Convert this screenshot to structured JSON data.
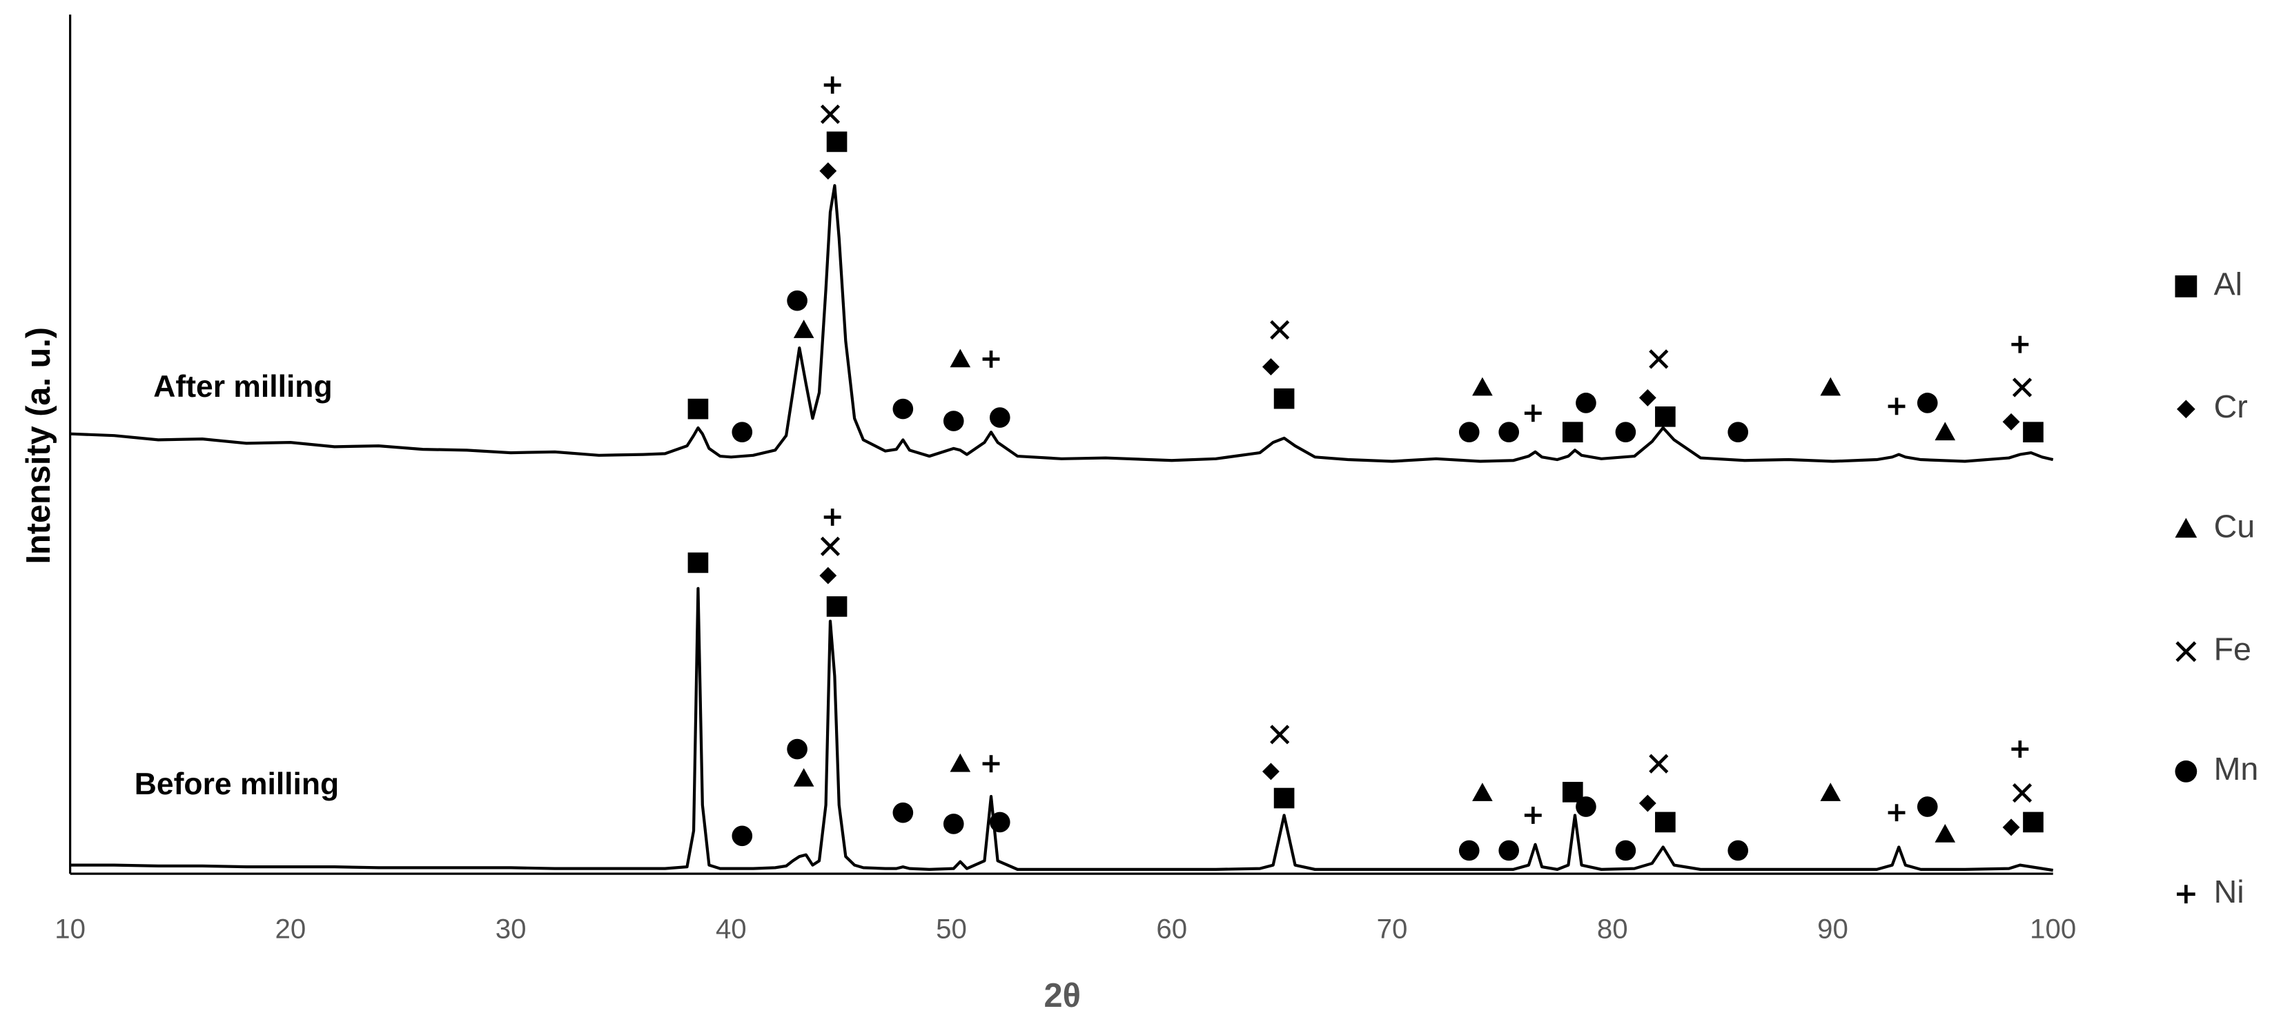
{
  "chart_data": {
    "type": "line",
    "x_label": "2θ",
    "y_label": "Intensity (a. u.)",
    "xlim": [
      10,
      100
    ],
    "xticks": [
      10,
      20,
      30,
      40,
      50,
      60,
      70,
      80,
      90,
      100
    ],
    "ylim": [
      0,
      100
    ],
    "x": [
      10,
      12,
      14,
      16,
      18,
      20,
      22,
      24,
      26,
      28,
      30,
      32,
      34,
      36,
      37,
      38,
      38.3,
      38.5,
      38.7,
      39,
      39.5,
      40,
      41,
      42,
      42.5,
      42.8,
      43.1,
      43.4,
      43.7,
      44,
      44.3,
      44.5,
      44.7,
      44.9,
      45.2,
      45.6,
      46,
      47,
      47.5,
      47.8,
      48.1,
      49,
      50.1,
      50.4,
      50.7,
      51.5,
      51.8,
      52.1,
      53,
      55,
      57,
      60,
      62,
      64,
      64.6,
      65.1,
      65.6,
      66.5,
      68,
      70,
      72,
      74,
      75.5,
      76.2,
      76.5,
      76.8,
      77.5,
      78,
      78.3,
      78.6,
      79.5,
      81,
      81.8,
      82.3,
      82.8,
      84,
      86,
      88,
      90,
      92,
      92.7,
      93,
      93.3,
      94,
      96,
      98,
      98.5,
      99,
      99.5,
      100
    ],
    "series": [
      {
        "name": "After milling",
        "color": "#000000",
        "values": [
          51.2,
          51.0,
          50.5,
          50.6,
          50.1,
          50.2,
          49.7,
          49.8,
          49.4,
          49.3,
          49.0,
          49.1,
          48.7,
          48.8,
          48.9,
          49.8,
          51.0,
          51.9,
          51.2,
          49.5,
          48.6,
          48.5,
          48.7,
          49.3,
          51.0,
          56.0,
          61.2,
          57.0,
          53.0,
          56.0,
          68.0,
          77.0,
          80.1,
          74.0,
          62.0,
          53.0,
          50.5,
          49.2,
          49.4,
          50.5,
          49.3,
          48.6,
          49.5,
          49.3,
          48.8,
          50.2,
          51.4,
          50.2,
          48.6,
          48.3,
          48.4,
          48.1,
          48.3,
          49.0,
          50.2,
          50.7,
          49.8,
          48.5,
          48.2,
          48.0,
          48.3,
          48.0,
          48.1,
          48.6,
          49.1,
          48.5,
          48.2,
          48.6,
          49.3,
          48.7,
          48.3,
          48.6,
          50.3,
          51.9,
          50.5,
          48.4,
          48.1,
          48.2,
          48.0,
          48.2,
          48.5,
          48.8,
          48.5,
          48.2,
          48.0,
          48.4,
          48.8,
          49.0,
          48.5,
          48.2
        ]
      },
      {
        "name": "Before milling",
        "color": "#000000",
        "values": [
          1.0,
          1.0,
          0.9,
          0.9,
          0.8,
          0.8,
          0.8,
          0.7,
          0.7,
          0.7,
          0.7,
          0.6,
          0.6,
          0.6,
          0.6,
          0.8,
          5,
          33.2,
          8,
          1.0,
          0.6,
          0.6,
          0.6,
          0.7,
          0.9,
          1.5,
          2.0,
          2.2,
          1.0,
          1.5,
          8,
          29.4,
          23.0,
          8,
          2,
          1.0,
          0.7,
          0.6,
          0.6,
          0.8,
          0.6,
          0.5,
          0.6,
          1.4,
          0.6,
          1.5,
          9.0,
          1.5,
          0.5,
          0.5,
          0.5,
          0.5,
          0.5,
          0.6,
          1.0,
          6.8,
          1.0,
          0.5,
          0.5,
          0.5,
          0.5,
          0.5,
          0.5,
          1.0,
          3.4,
          0.8,
          0.5,
          1.0,
          6.8,
          1.0,
          0.5,
          0.6,
          1.2,
          3.1,
          1.0,
          0.5,
          0.5,
          0.5,
          0.5,
          0.5,
          1.0,
          3.1,
          1.0,
          0.5,
          0.5,
          0.6,
          1.0,
          0.8,
          0.6,
          0.4
        ]
      }
    ],
    "phases": [
      {
        "name": "Al",
        "shape": "square",
        "x": [
          38.5,
          44.8,
          65.1,
          78.2,
          82.4,
          99.1,
          38.5,
          44.8,
          65.1,
          78.2,
          82.4,
          99.1
        ],
        "y": [
          54.1,
          85.2,
          55.3,
          51.4,
          53.2,
          51.4,
          36.2,
          31.1,
          8.8,
          9.5,
          6.0,
          6.0
        ]
      },
      {
        "name": "Cr",
        "shape": "diamond",
        "x": [
          44.4,
          64.5,
          81.6,
          98.1,
          44.4,
          64.5,
          81.6,
          98.1
        ],
        "y": [
          81.8,
          59.0,
          55.4,
          52.6,
          34.7,
          11.9,
          8.2,
          5.4
        ]
      },
      {
        "name": "Cu",
        "shape": "triangle",
        "x": [
          43.3,
          50.4,
          74.1,
          89.9,
          95.1,
          43.3,
          50.4,
          74.1,
          89.9,
          95.1
        ],
        "y": [
          63.3,
          59.9,
          56.6,
          56.6,
          51.4,
          11.1,
          12.8,
          9.4,
          9.4,
          4.6
        ]
      },
      {
        "name": "Fe",
        "shape": "cross",
        "x": [
          44.5,
          64.9,
          82.1,
          98.6,
          44.5,
          64.9,
          82.1,
          98.6
        ],
        "y": [
          88.4,
          63.3,
          59.9,
          56.6,
          38.1,
          16.2,
          12.8,
          9.4
        ]
      },
      {
        "name": "Mn",
        "shape": "circle",
        "x": [
          43.0,
          40.5,
          47.8,
          50.1,
          52.2,
          73.5,
          75.3,
          78.8,
          80.6,
          85.7,
          94.3,
          43.0,
          40.5,
          47.8,
          50.1,
          52.2,
          73.5,
          75.3,
          78.8,
          80.6,
          85.7,
          94.3
        ],
        "y": [
          66.7,
          51.4,
          54.1,
          52.7,
          53.1,
          51.4,
          51.4,
          54.8,
          51.4,
          51.4,
          54.8,
          14.5,
          4.4,
          7.1,
          5.8,
          6.0,
          2.7,
          2.7,
          7.8,
          2.7,
          2.7,
          7.8
        ]
      },
      {
        "name": "Ni",
        "shape": "plus",
        "x": [
          44.6,
          51.8,
          76.4,
          92.9,
          98.5,
          44.6,
          51.8,
          76.4,
          92.9,
          98.5
        ],
        "y": [
          91.8,
          59.9,
          53.6,
          54.4,
          61.6,
          41.5,
          12.8,
          6.8,
          7.1,
          14.5
        ]
      }
    ]
  }
}
